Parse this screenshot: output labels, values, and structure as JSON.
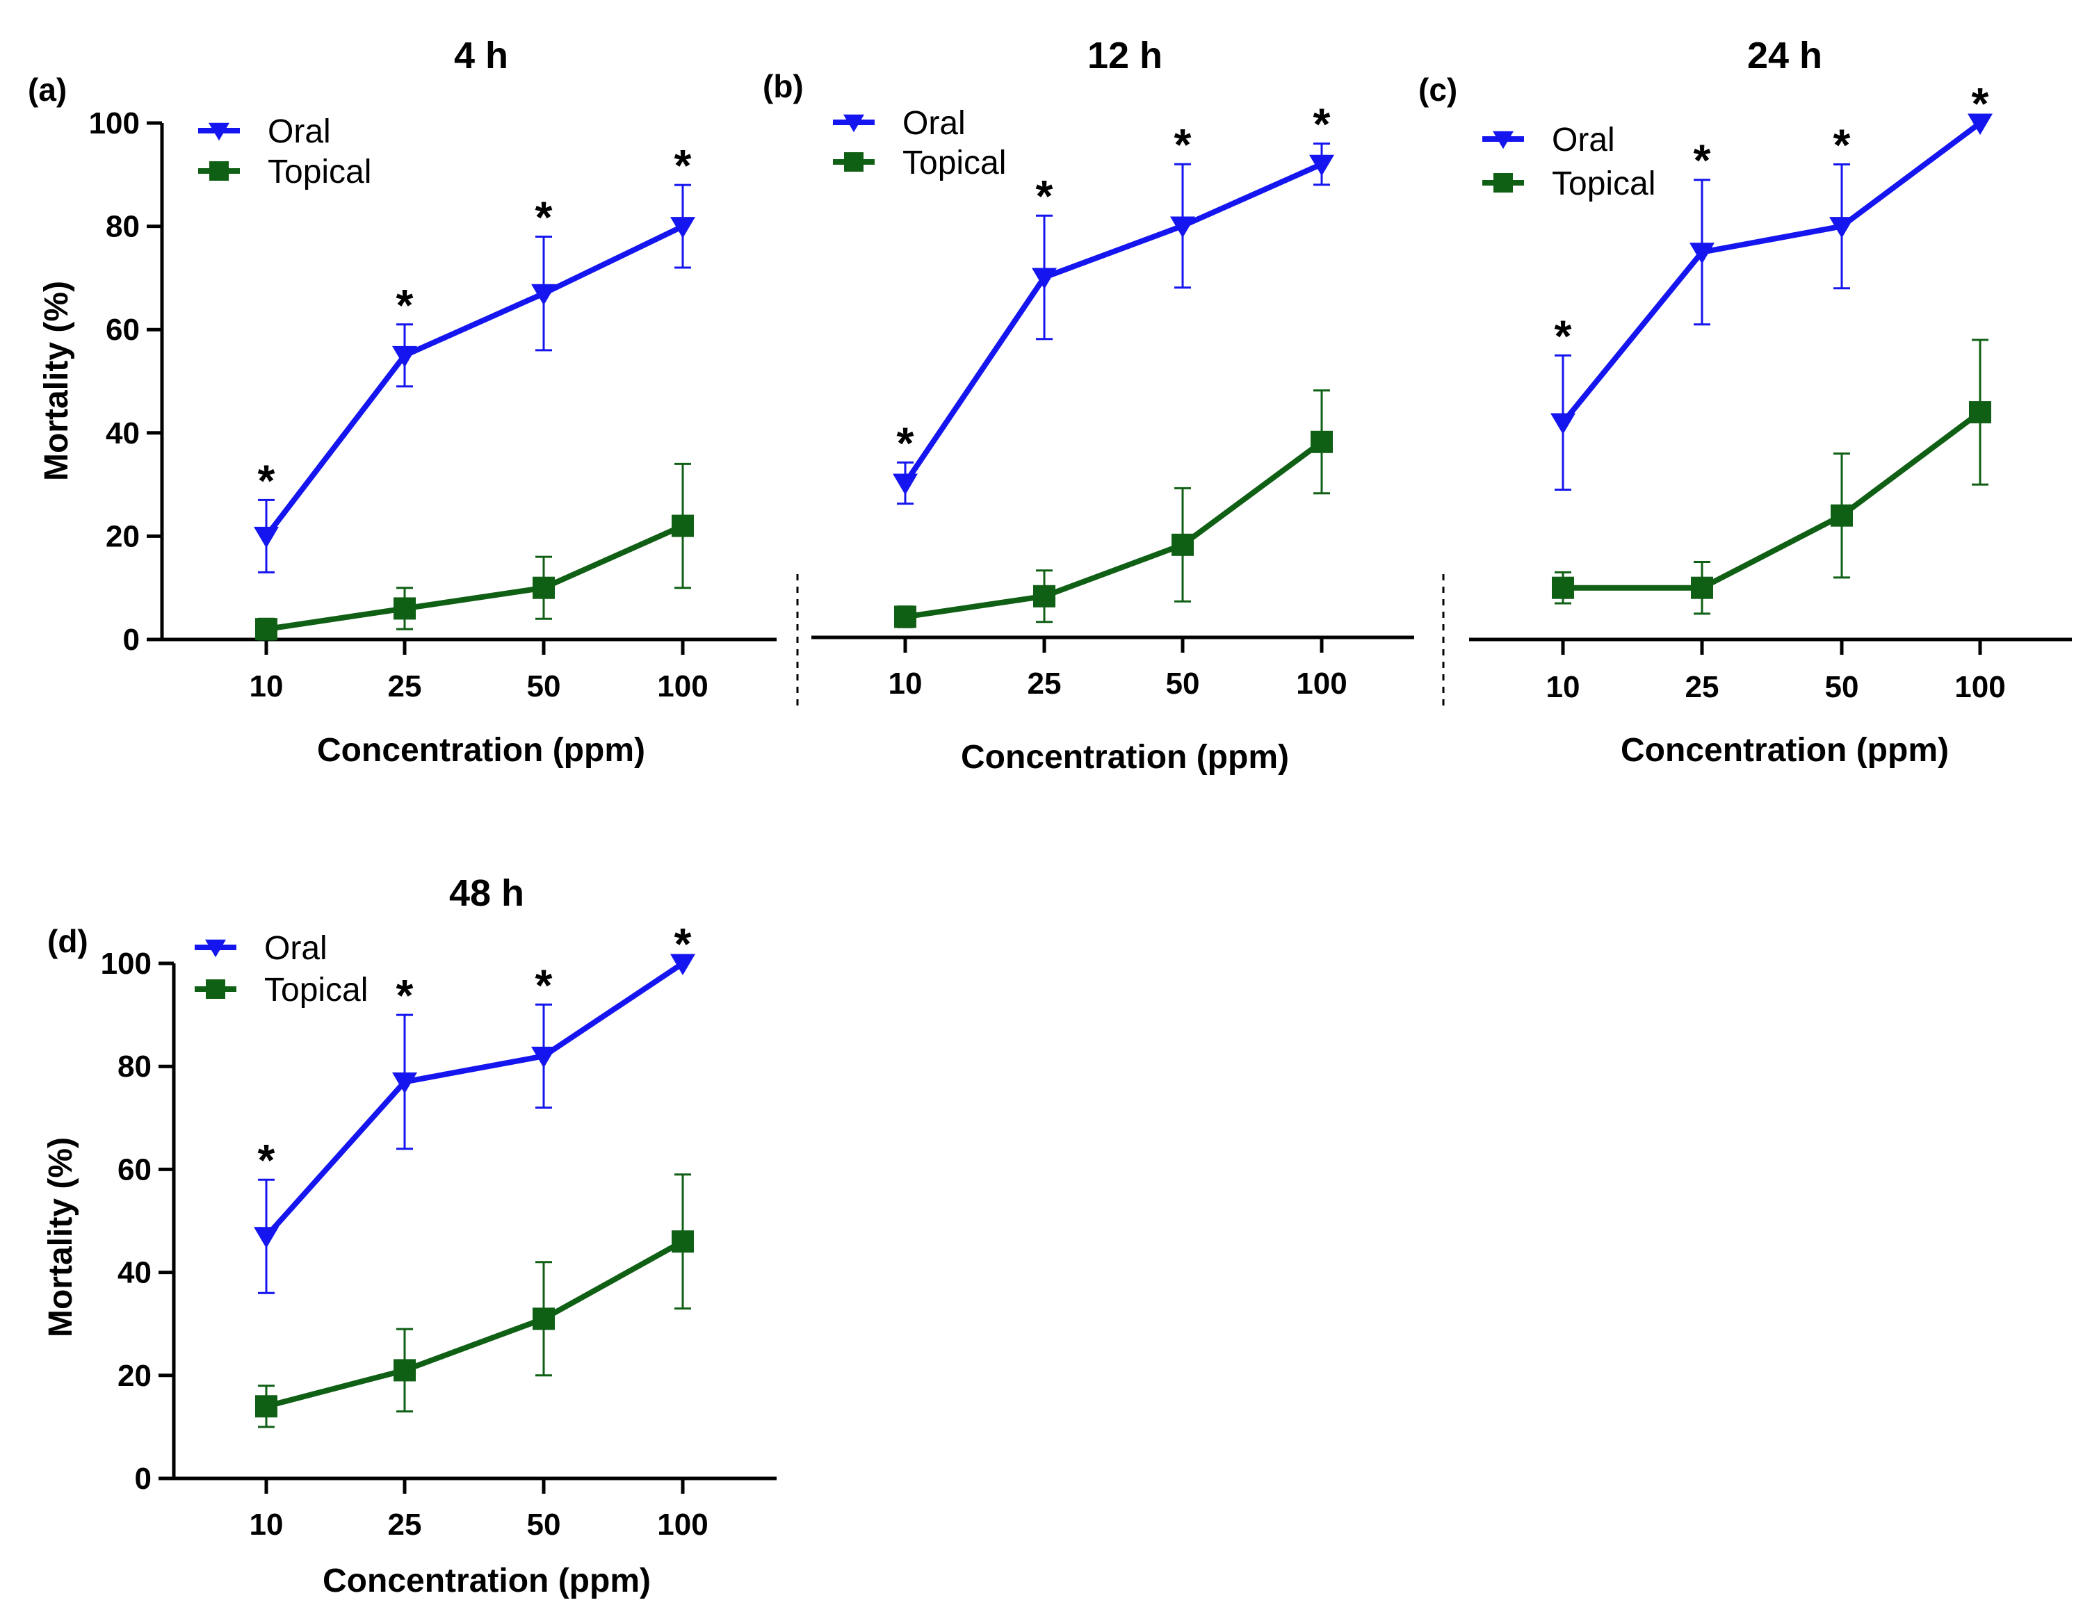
{
  "chart_data": [
    {
      "type": "line",
      "panel_label": "(a)",
      "title": "4 h",
      "xlabel": "Concentration (ppm)",
      "ylabel": "Mortality (%)",
      "categories": [
        "10",
        "25",
        "50",
        "100"
      ],
      "ylim": [
        0,
        100
      ],
      "yticks": [
        "0",
        "20",
        "40",
        "60",
        "80",
        "100"
      ],
      "legend_position": "top-left",
      "series": [
        {
          "name": "Oral",
          "color": "#1515f0",
          "marker": "triangle-down",
          "values": [
            20,
            55,
            67,
            80
          ],
          "error": [
            7,
            6,
            11,
            8
          ],
          "significance": [
            "*",
            "*",
            "*",
            "*"
          ]
        },
        {
          "name": "Topical",
          "color": "#0f5f14",
          "marker": "square",
          "values": [
            2,
            6,
            10,
            22
          ],
          "error": [
            2,
            4,
            6,
            12
          ]
        }
      ]
    },
    {
      "type": "line",
      "panel_label": "(b)",
      "title": "12 h",
      "xlabel": "Concentration (ppm)",
      "ylabel": "",
      "categories": [
        "10",
        "25",
        "50",
        "100"
      ],
      "ylim": [
        0,
        100
      ],
      "legend_position": "top-left",
      "series": [
        {
          "name": "Oral",
          "color": "#1515f0",
          "marker": "triangle-down",
          "values": [
            30,
            70,
            80,
            92
          ],
          "error": [
            4,
            12,
            12,
            4
          ],
          "significance": [
            "*",
            "*",
            "*",
            "*"
          ]
        },
        {
          "name": "Topical",
          "color": "#0f5f14",
          "marker": "square",
          "values": [
            4,
            8,
            18,
            38
          ],
          "error": [
            2,
            5,
            11,
            10
          ]
        }
      ]
    },
    {
      "type": "line",
      "panel_label": "(c)",
      "title": "24 h",
      "xlabel": "Concentration (ppm)",
      "ylabel": "",
      "categories": [
        "10",
        "25",
        "50",
        "100"
      ],
      "ylim": [
        0,
        100
      ],
      "legend_position": "top-left",
      "series": [
        {
          "name": "Oral",
          "color": "#1515f0",
          "marker": "triangle-down",
          "values": [
            42,
            75,
            80,
            100
          ],
          "error": [
            13,
            14,
            12,
            0
          ],
          "significance": [
            "*",
            "*",
            "*",
            "*"
          ]
        },
        {
          "name": "Topical",
          "color": "#0f5f14",
          "marker": "square",
          "values": [
            10,
            10,
            24,
            44
          ],
          "error": [
            3,
            5,
            12,
            14
          ]
        }
      ]
    },
    {
      "type": "line",
      "panel_label": "(d)",
      "title": "48 h",
      "xlabel": "Concentration (ppm)",
      "ylabel": "Mortality (%)",
      "categories": [
        "10",
        "25",
        "50",
        "100"
      ],
      "ylim": [
        0,
        100
      ],
      "yticks": [
        "0",
        "20",
        "40",
        "60",
        "80",
        "100"
      ],
      "legend_position": "top-left",
      "series": [
        {
          "name": "Oral",
          "color": "#1515f0",
          "marker": "triangle-down",
          "values": [
            47,
            77,
            82,
            100
          ],
          "error": [
            11,
            13,
            10,
            0
          ],
          "significance": [
            "*",
            "*",
            "*",
            "*"
          ]
        },
        {
          "name": "Topical",
          "color": "#0f5f14",
          "marker": "square",
          "values": [
            14,
            21,
            31,
            46
          ],
          "error": [
            4,
            8,
            11,
            13
          ]
        }
      ]
    }
  ]
}
